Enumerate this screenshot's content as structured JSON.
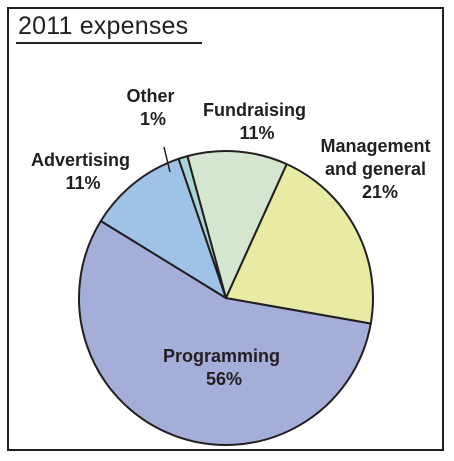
{
  "chart_data": {
    "type": "pie",
    "title": "2011 expenses",
    "slices": [
      {
        "name": "Programming",
        "value": 56,
        "display": "56%",
        "color": "#a5add9"
      },
      {
        "name": "Advertising",
        "value": 11,
        "display": "11%",
        "color": "#9fc2e7"
      },
      {
        "name": "Other",
        "value": 1,
        "display": "1%",
        "color": "#a9d5d6"
      },
      {
        "name": "Fundraising",
        "value": 11,
        "display": "11%",
        "color": "#d4e6d0"
      },
      {
        "name": "Management and general",
        "value": 21,
        "display": "21%",
        "color": "#e7eba4"
      }
    ],
    "labels": {
      "programming": [
        "Programming",
        "56%"
      ],
      "advertising": [
        "Advertising",
        "11%"
      ],
      "other": [
        "Other",
        "1%"
      ],
      "fundraising": [
        "Fundraising",
        "11%"
      ],
      "management": [
        "Management",
        "and general",
        "21%"
      ]
    },
    "outline_color": "#231f20"
  }
}
